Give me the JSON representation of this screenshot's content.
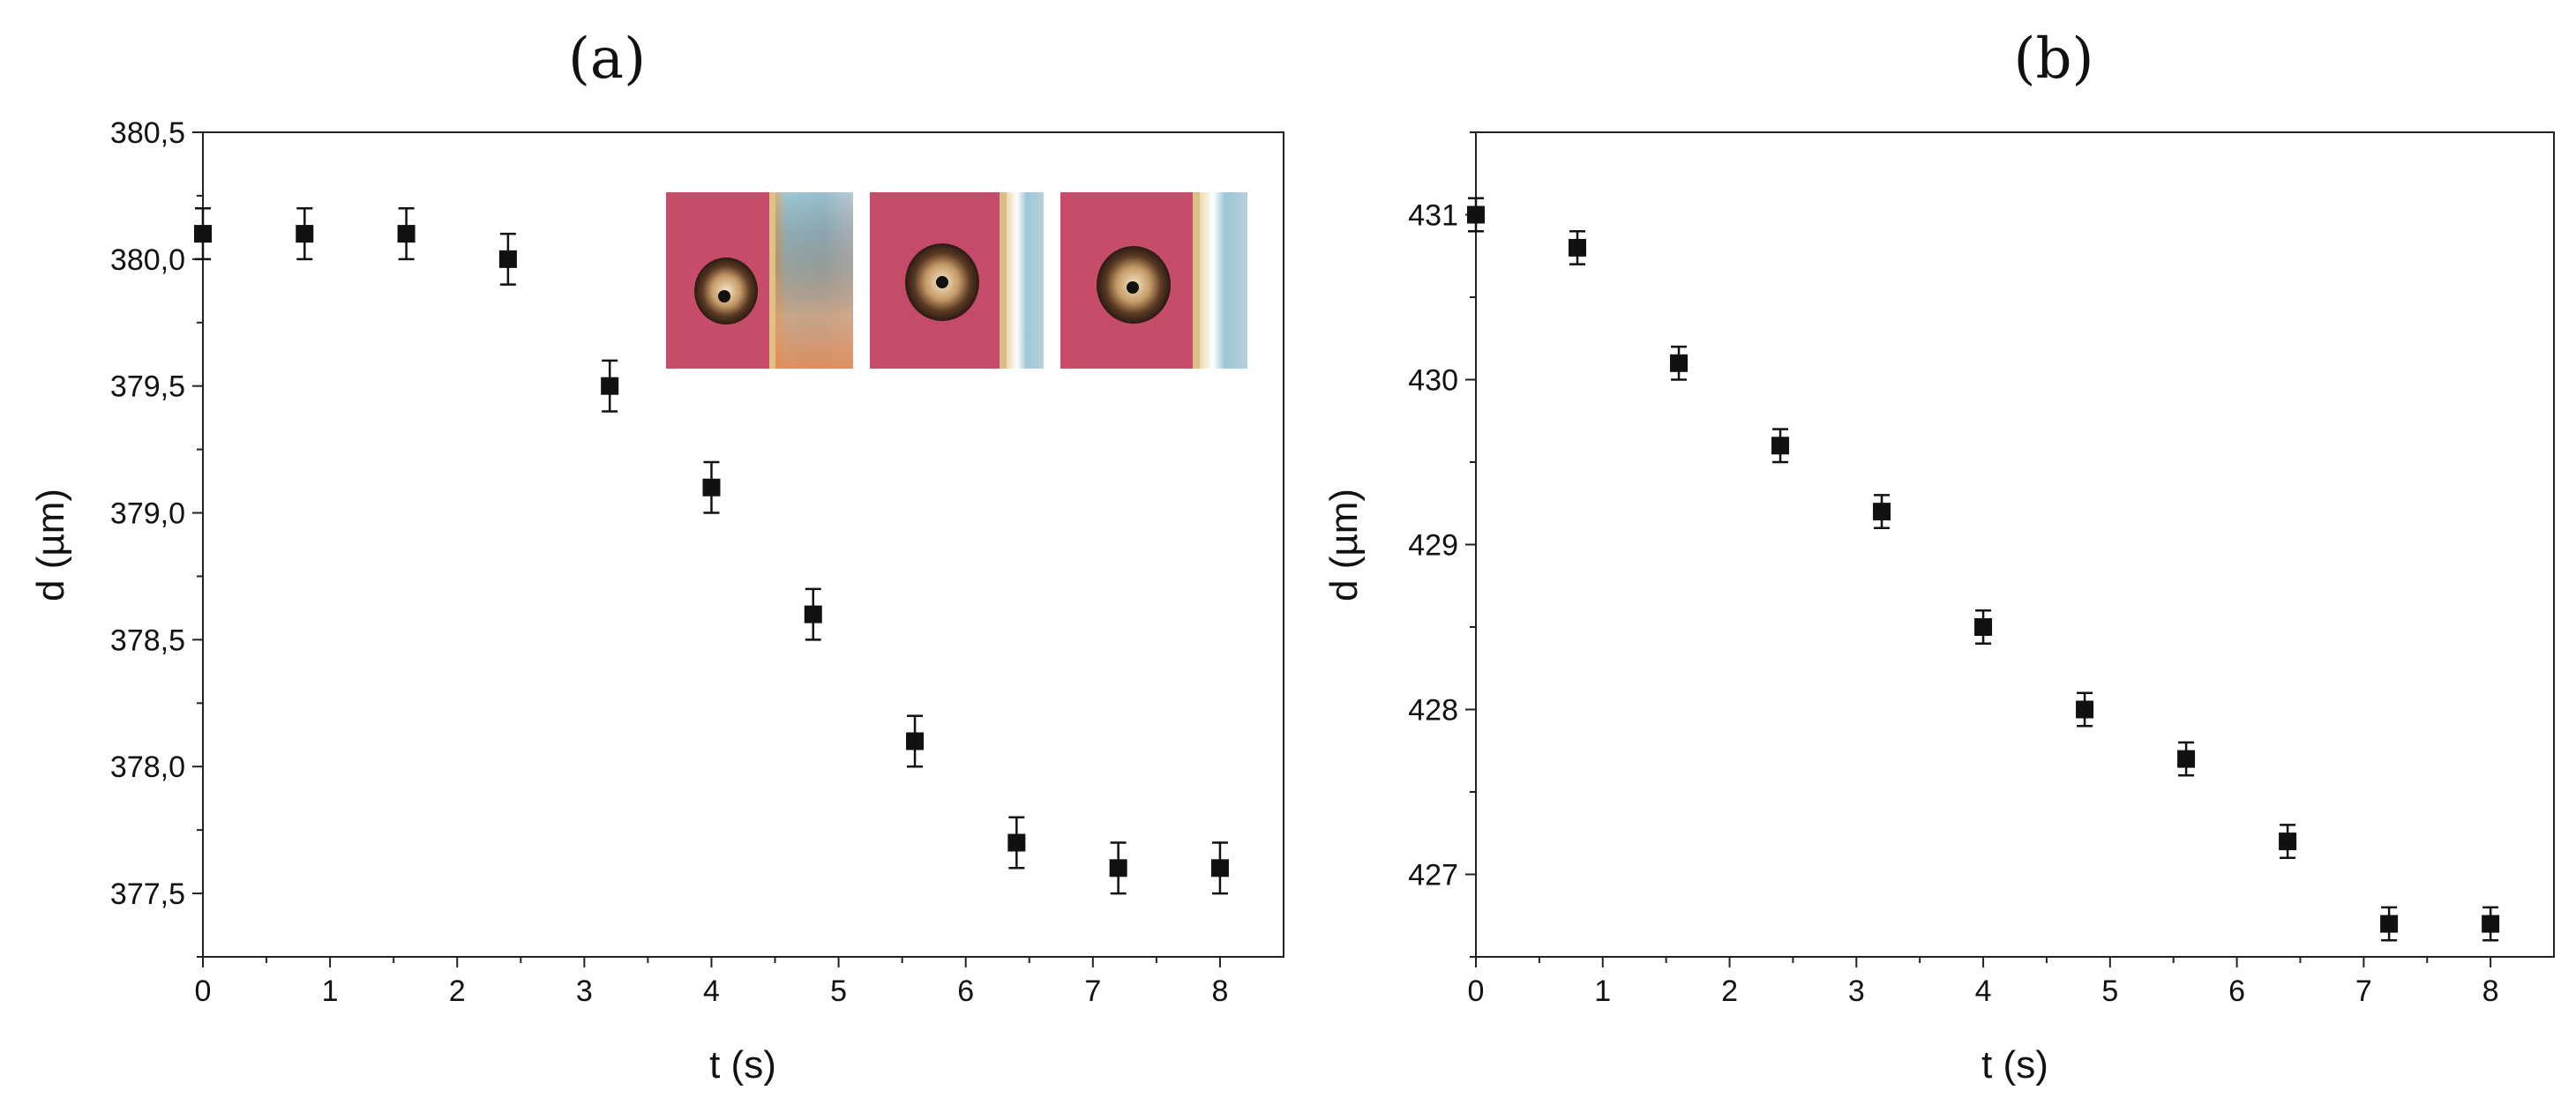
{
  "panels": [
    {
      "label": "(a)"
    },
    {
      "label": "(b)"
    }
  ],
  "chart_data": [
    {
      "type": "scatter",
      "xlabel": "t (s)",
      "ylabel": "d (µm)",
      "xlim": [
        0,
        8.5
      ],
      "ylim": [
        377.25,
        380.5
      ],
      "x_ticks": [
        0,
        1,
        2,
        3,
        4,
        5,
        6,
        7,
        8
      ],
      "x_tick_labels": [
        "0",
        "1",
        "2",
        "3",
        "4",
        "5",
        "6",
        "7",
        "8"
      ],
      "y_ticks": [
        377.5,
        378.0,
        378.5,
        379.0,
        379.5,
        380.0,
        380.5
      ],
      "y_tick_labels": [
        "377,5",
        "378,0",
        "378,5",
        "379,0",
        "379,5",
        "380,0",
        "380,5"
      ],
      "marker": "square",
      "series": [
        {
          "name": "d",
          "x": [
            0,
            0.8,
            1.6,
            2.4,
            3.2,
            4.0,
            4.8,
            5.6,
            6.4,
            7.2,
            8.0
          ],
          "y": [
            380.1,
            380.1,
            380.1,
            380.0,
            379.5,
            379.1,
            378.6,
            378.1,
            377.7,
            377.6,
            377.6
          ],
          "error": [
            0.1,
            0.1,
            0.1,
            0.1,
            0.1,
            0.1,
            0.1,
            0.1,
            0.1,
            0.1,
            0.1
          ]
        }
      ],
      "inset_images": 3
    },
    {
      "type": "scatter",
      "xlabel": "t (s)",
      "ylabel": "d (µm)",
      "xlim": [
        0,
        8.5
      ],
      "ylim": [
        426.5,
        431.5
      ],
      "x_ticks": [
        0,
        1,
        2,
        3,
        4,
        5,
        6,
        7,
        8
      ],
      "x_tick_labels": [
        "0",
        "1",
        "2",
        "3",
        "4",
        "5",
        "6",
        "7",
        "8"
      ],
      "y_ticks": [
        427,
        428,
        429,
        430,
        431
      ],
      "y_tick_labels": [
        "427",
        "428",
        "429",
        "430",
        "431"
      ],
      "marker": "square",
      "series": [
        {
          "name": "d",
          "x": [
            0,
            0.8,
            1.6,
            2.4,
            3.2,
            4.0,
            4.8,
            5.6,
            6.4,
            7.2,
            8.0
          ],
          "y": [
            431.0,
            430.8,
            430.1,
            429.6,
            429.2,
            428.5,
            428.0,
            427.7,
            427.2,
            426.7,
            426.7
          ],
          "error": [
            0.1,
            0.1,
            0.1,
            0.1,
            0.1,
            0.1,
            0.1,
            0.1,
            0.1,
            0.1,
            0.1
          ]
        }
      ]
    }
  ]
}
